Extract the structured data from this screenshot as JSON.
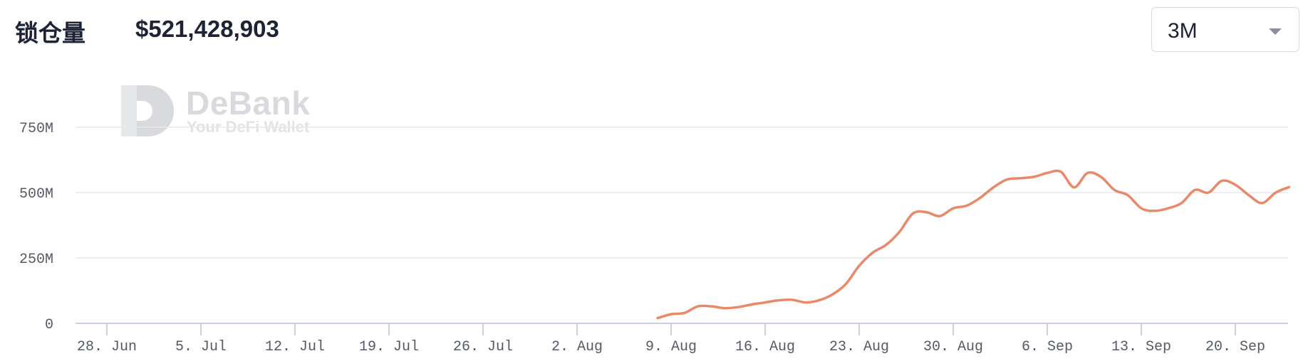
{
  "header": {
    "tvl_label": "锁仓量",
    "tvl_value": "$521,428,903",
    "range": "3M"
  },
  "watermark": {
    "brand": "DeBank",
    "tagline": "Your DeFi Wallet"
  },
  "colors": {
    "line": "#e8896a",
    "grid": "#e6e8ec",
    "axis": "#c9d0e3",
    "text": "#1e2235"
  },
  "chart_data": {
    "type": "line",
    "title": "",
    "xlabel": "",
    "ylabel": "",
    "x_range": [
      "2021-06-28",
      "2021-09-26"
    ],
    "ylim": [
      0,
      800000000
    ],
    "y_ticks": [
      {
        "value": 0,
        "label": "0"
      },
      {
        "value": 250000000,
        "label": "250M"
      },
      {
        "value": 500000000,
        "label": "500M"
      },
      {
        "value": 750000000,
        "label": "750M"
      }
    ],
    "x_ticks": [
      {
        "date": "2021-06-28",
        "label": "28. Jun"
      },
      {
        "date": "2021-07-05",
        "label": "5. Jul"
      },
      {
        "date": "2021-07-12",
        "label": "12. Jul"
      },
      {
        "date": "2021-07-19",
        "label": "19. Jul"
      },
      {
        "date": "2021-07-26",
        "label": "26. Jul"
      },
      {
        "date": "2021-08-02",
        "label": "2. Aug"
      },
      {
        "date": "2021-08-09",
        "label": "9. Aug"
      },
      {
        "date": "2021-08-16",
        "label": "16. Aug"
      },
      {
        "date": "2021-08-23",
        "label": "23. Aug"
      },
      {
        "date": "2021-08-30",
        "label": "30. Aug"
      },
      {
        "date": "2021-09-06",
        "label": "6. Sep"
      },
      {
        "date": "2021-09-13",
        "label": "13. Sep"
      },
      {
        "date": "2021-09-20",
        "label": "20. Sep"
      }
    ],
    "grid": true,
    "legend": "none",
    "series": [
      {
        "x": [
          "2021-08-08",
          "2021-08-09",
          "2021-08-10",
          "2021-08-11",
          "2021-08-12",
          "2021-08-13",
          "2021-08-14",
          "2021-08-15",
          "2021-08-16",
          "2021-08-17",
          "2021-08-18",
          "2021-08-19",
          "2021-08-20",
          "2021-08-21",
          "2021-08-22",
          "2021-08-23",
          "2021-08-24",
          "2021-08-25",
          "2021-08-26",
          "2021-08-27",
          "2021-08-28",
          "2021-08-29",
          "2021-08-30",
          "2021-08-31",
          "2021-09-01",
          "2021-09-02",
          "2021-09-03",
          "2021-09-04",
          "2021-09-05",
          "2021-09-06",
          "2021-09-07",
          "2021-09-08",
          "2021-09-09",
          "2021-09-10",
          "2021-09-11",
          "2021-09-12",
          "2021-09-13",
          "2021-09-14",
          "2021-09-15",
          "2021-09-16",
          "2021-09-17",
          "2021-09-18",
          "2021-09-19",
          "2021-09-20",
          "2021-09-21",
          "2021-09-22",
          "2021-09-23",
          "2021-09-24"
        ],
        "values": [
          20000000,
          35000000,
          40000000,
          65000000,
          65000000,
          58000000,
          62000000,
          72000000,
          80000000,
          88000000,
          90000000,
          80000000,
          88000000,
          110000000,
          150000000,
          220000000,
          270000000,
          300000000,
          350000000,
          420000000,
          425000000,
          410000000,
          440000000,
          450000000,
          480000000,
          520000000,
          550000000,
          555000000,
          560000000,
          575000000,
          580000000,
          520000000,
          575000000,
          560000000,
          510000000,
          490000000,
          440000000,
          430000000,
          440000000,
          460000000,
          510000000,
          500000000,
          545000000,
          530000000,
          490000000,
          460000000,
          500000000,
          521000000
        ]
      }
    ]
  }
}
